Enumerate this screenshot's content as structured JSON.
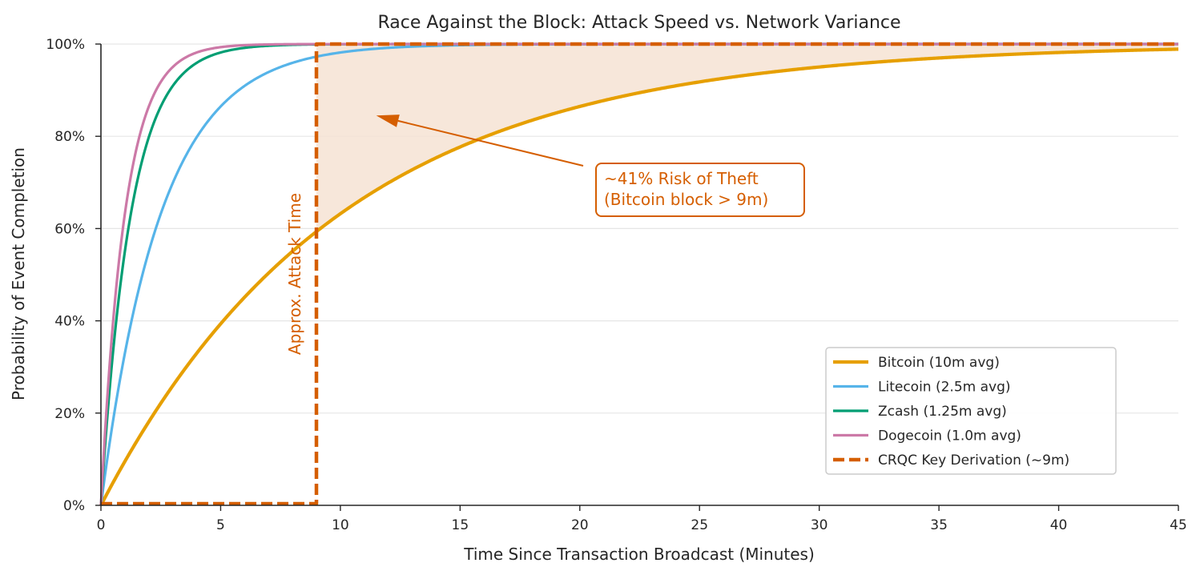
{
  "chart_data": {
    "type": "line",
    "title": "Race Against the Block: Attack Speed vs. Network Variance",
    "xlabel": "Time Since Transaction Broadcast (Minutes)",
    "ylabel": "Probability of Event Completion",
    "xlim": [
      0,
      45
    ],
    "ylim": [
      0,
      1
    ],
    "x_ticks": [
      0,
      5,
      10,
      15,
      20,
      25,
      30,
      35,
      40,
      45
    ],
    "x_tick_labels": [
      "0",
      "5",
      "10",
      "15",
      "20",
      "25",
      "30",
      "35",
      "40",
      "45"
    ],
    "y_ticks": [
      0,
      0.2,
      0.4,
      0.6,
      0.8,
      1.0
    ],
    "y_tick_labels": [
      "0%",
      "20%",
      "40%",
      "60%",
      "80%",
      "100%"
    ],
    "grid": "horizontal",
    "legend_position": "lower-right",
    "series": [
      {
        "name": "Bitcoin (10m avg)",
        "kind": "exponential-cdf",
        "mean_minutes": 10,
        "color": "#E69F00",
        "style": "solid"
      },
      {
        "name": "Litecoin (2.5m avg)",
        "kind": "exponential-cdf",
        "mean_minutes": 2.5,
        "color": "#56B4E9",
        "style": "solid"
      },
      {
        "name": "Zcash (1.25m avg)",
        "kind": "exponential-cdf",
        "mean_minutes": 1.25,
        "color": "#009E73",
        "style": "solid"
      },
      {
        "name": "Dogecoin (1.0m avg)",
        "kind": "exponential-cdf",
        "mean_minutes": 1.0,
        "color": "#CC79A7",
        "style": "solid"
      },
      {
        "name": "CRQC Key Derivation (~9m)",
        "kind": "step",
        "step_at_minutes": 9,
        "color": "#D55E00",
        "style": "dashed"
      }
    ],
    "shaded_region": {
      "from_minutes": 9,
      "to_minutes": 45,
      "between": [
        "CRQC Key Derivation (~9m)",
        "Bitcoin (10m avg)"
      ],
      "color": "#F6E3D3"
    },
    "annotations": [
      {
        "text_lines": [
          "~41% Risk of Theft",
          "(Bitcoin block > 9m)"
        ],
        "color": "#D55E00",
        "arrow_to": {
          "x": 11.5,
          "y": 0.845
        }
      },
      {
        "text_lines": [
          "Approx. Attack Time"
        ],
        "color": "#D55E00",
        "rotation": -90
      }
    ]
  }
}
